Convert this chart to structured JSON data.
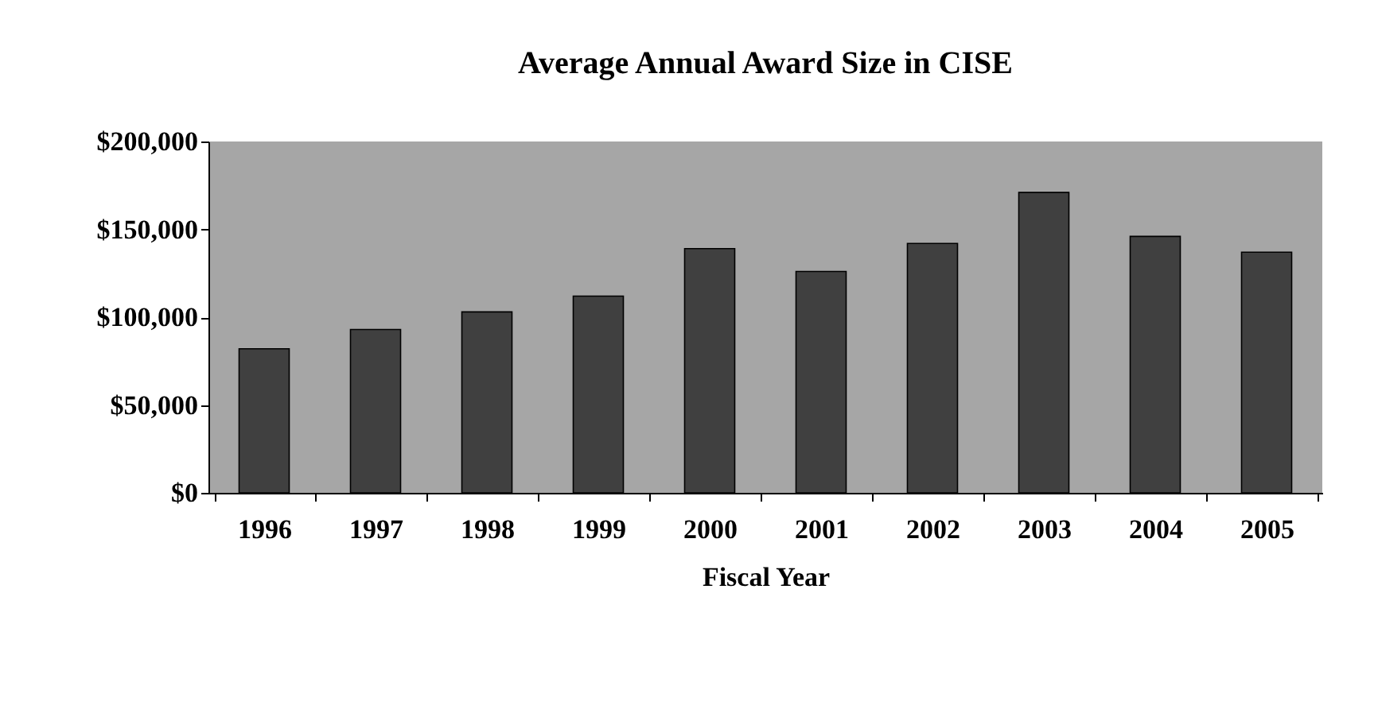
{
  "chart_data": {
    "type": "bar",
    "title": "Average Annual Award Size in CISE",
    "xlabel": "Fiscal Year",
    "categories": [
      "1996",
      "1997",
      "1998",
      "1999",
      "2000",
      "2001",
      "2002",
      "2003",
      "2004",
      "2005"
    ],
    "values": [
      82000,
      93000,
      103000,
      112000,
      139000,
      126000,
      142000,
      171000,
      146000,
      137000
    ],
    "color": "#404040",
    "ylim": [
      0,
      200000
    ],
    "yticks": [
      {
        "value": 0,
        "label": "$0"
      },
      {
        "value": 50000,
        "label": "$50,000"
      },
      {
        "value": 100000,
        "label": "$100,000"
      },
      {
        "value": 150000,
        "label": "$150,000"
      },
      {
        "value": 200000,
        "label": "$200,000"
      }
    ],
    "grid": false
  }
}
